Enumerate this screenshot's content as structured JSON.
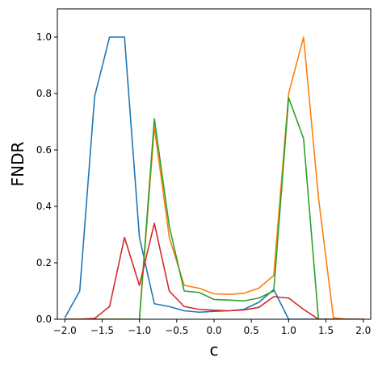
{
  "chart_data": {
    "type": "line",
    "title": "",
    "xlabel": "c",
    "ylabel": "FNDR",
    "xlim": [
      -2.1,
      2.1
    ],
    "ylim": [
      0.0,
      1.1
    ],
    "xticks": [
      -2.0,
      -1.5,
      -1.0,
      -0.5,
      0.0,
      0.5,
      1.0,
      1.5,
      2.0
    ],
    "xtick_labels": [
      "−2.0",
      "−1.5",
      "−1.0",
      "−0.5",
      "0.0",
      "0.5",
      "1.0",
      "1.5",
      "2.0"
    ],
    "yticks": [
      0.0,
      0.2,
      0.4,
      0.6,
      0.8,
      1.0
    ],
    "ytick_labels": [
      "0.0",
      "0.2",
      "0.4",
      "0.6",
      "0.8",
      "1.0"
    ],
    "grid": false,
    "x": [
      -2.0,
      -1.8,
      -1.6,
      -1.4,
      -1.2,
      -1.0,
      -0.8,
      -0.6,
      -0.4,
      -0.2,
      0.0,
      0.2,
      0.4,
      0.6,
      0.8,
      1.0,
      1.2,
      1.4,
      1.6,
      1.8,
      2.0
    ],
    "series": [
      {
        "color": "#1f77b4",
        "values": [
          0.005,
          0.1,
          0.79,
          1.0,
          1.0,
          0.29,
          0.055,
          0.045,
          0.03,
          0.025,
          0.028,
          0.03,
          0.035,
          0.06,
          0.105,
          0.0,
          0.0,
          0.0,
          0.0,
          0.0,
          0.0
        ]
      },
      {
        "color": "#ff7f0e",
        "values": [
          0.0,
          0.0,
          0.0,
          0.0,
          0.0,
          0.0,
          0.68,
          0.29,
          0.12,
          0.11,
          0.09,
          0.088,
          0.092,
          0.11,
          0.155,
          0.8,
          1.0,
          0.43,
          0.005,
          0.0,
          0.0
        ]
      },
      {
        "color": "#2ca02c",
        "values": [
          0.0,
          0.0,
          0.0,
          0.0,
          0.0,
          0.0,
          0.71,
          0.33,
          0.1,
          0.095,
          0.07,
          0.068,
          0.065,
          0.075,
          0.1,
          0.785,
          0.64,
          0.0,
          0.0,
          0.0,
          0.0
        ]
      },
      {
        "color": "#d62728",
        "values": [
          0.0,
          0.0,
          0.003,
          0.045,
          0.29,
          0.12,
          0.34,
          0.1,
          0.045,
          0.035,
          0.032,
          0.03,
          0.033,
          0.042,
          0.08,
          0.075,
          0.035,
          0.0,
          0.0,
          0.0,
          0.0
        ]
      }
    ]
  }
}
